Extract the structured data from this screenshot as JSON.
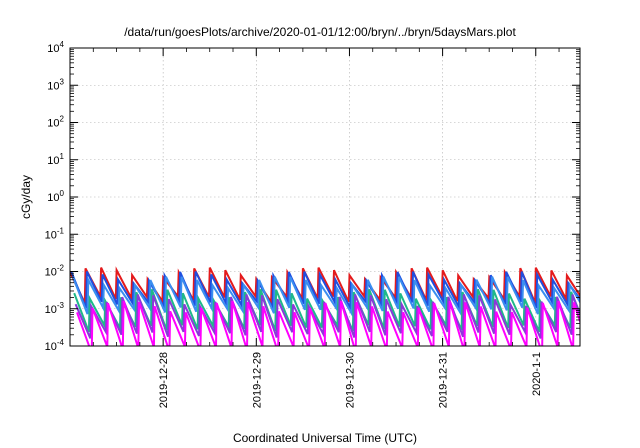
{
  "chart_data": {
    "type": "line",
    "title": "/data/run/goesPlots/archive/2020-01-01/12:00/bryn/../bryn/5daysMars.plot",
    "xlabel": "Coordinated Universal Time (UTC)",
    "ylabel": "cGy/day",
    "yscale": "log",
    "ylim": [
      0.0001,
      10000
    ],
    "xlim": [
      0,
      5.475
    ],
    "x_units": "days from plot start (2019-12-27)",
    "grid": true,
    "legend": "none",
    "ytick_labels": [
      {
        "base": "10",
        "exp": "-4",
        "value": 0.0001
      },
      {
        "base": "10",
        "exp": "-3",
        "value": 0.001
      },
      {
        "base": "10",
        "exp": "-2",
        "value": 0.01
      },
      {
        "base": "10",
        "exp": "-1",
        "value": 0.1
      },
      {
        "base": "10",
        "exp": "0",
        "value": 1
      },
      {
        "base": "10",
        "exp": "1",
        "value": 10
      },
      {
        "base": "10",
        "exp": "2",
        "value": 100
      },
      {
        "base": "10",
        "exp": "3",
        "value": 1000
      },
      {
        "base": "10",
        "exp": "4",
        "value": 10000
      }
    ],
    "xtick_labels": [
      {
        "label": "2019-12-28",
        "x": 1.0
      },
      {
        "label": "2019-12-29",
        "x": 2.0
      },
      {
        "label": "2019-12-30",
        "x": 3.0
      },
      {
        "label": "2019-12-31",
        "x": 4.0
      },
      {
        "label": "2020-1-1",
        "x": 5.0
      }
    ],
    "sawtooth_period_days": 0.1667,
    "series": [
      {
        "color": "#e41a1c",
        "peak": 0.0095,
        "trough": 0.0018
      },
      {
        "color": "#1f4fe0",
        "peak": 0.0075,
        "trough": 0.0013
      },
      {
        "color": "#3a8ef0",
        "peak": 0.0055,
        "trough": 0.0009
      },
      {
        "color": "#1fb88a",
        "peak": 0.0025,
        "trough": 0.0003
      },
      {
        "color": "#8a3ad8",
        "peak": 0.0018,
        "trough": 0.0002
      },
      {
        "color": "#ff00ff",
        "peak": 0.0012,
        "trough": 8e-05
      }
    ]
  }
}
